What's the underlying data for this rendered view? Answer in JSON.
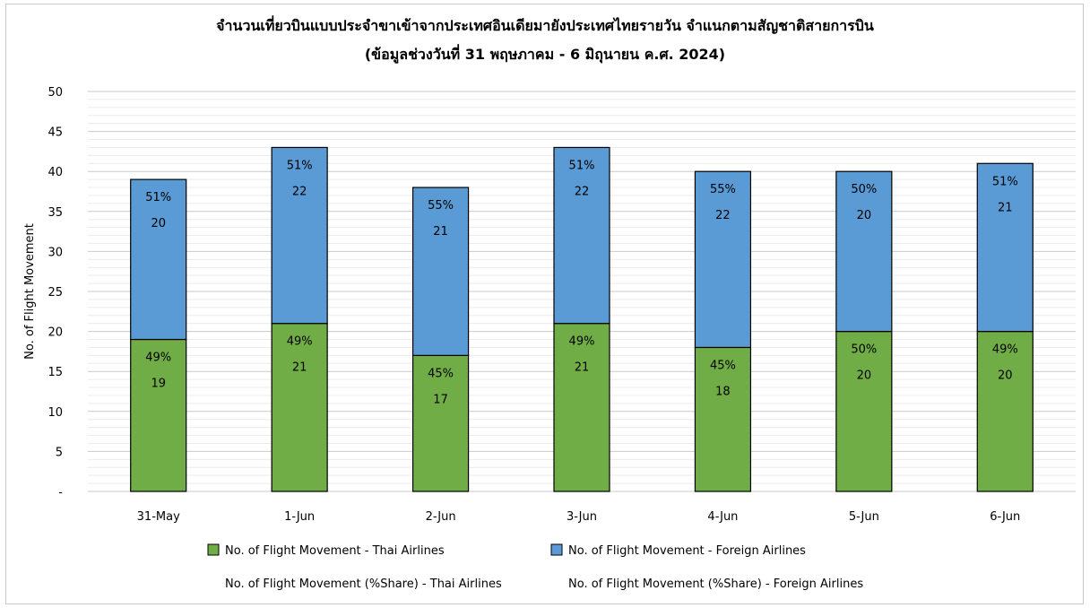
{
  "chart_data": {
    "type": "bar",
    "stacked": true,
    "title": "จำนวนเที่ยวบินแบบประจำขาเข้าจากประเทศอินเดียมายังประเทศไทยรายวัน  จำแนกตามสัญชาติสายการบิน",
    "subtitle": "(ข้อมูลช่วงวันที่ 31 พฤษภาคม - 6 มิถุนายน ค.ศ. 2024)",
    "xlabel": "",
    "ylabel": "No. of Flight Movement",
    "ylim": [
      0,
      50
    ],
    "yticks": [
      "-",
      "5",
      "10",
      "15",
      "20",
      "25",
      "30",
      "35",
      "40",
      "45",
      "50"
    ],
    "grid": true,
    "legend_position": "bottom",
    "categories": [
      "31-May",
      "1-Jun",
      "2-Jun",
      "3-Jun",
      "4-Jun",
      "5-Jun",
      "6-Jun"
    ],
    "series": [
      {
        "name": "No. of Flight Movement - Thai Airlines",
        "color": "#70ad47",
        "values": [
          19,
          21,
          17,
          21,
          18,
          20,
          20
        ],
        "share_labels": [
          "49%",
          "49%",
          "45%",
          "49%",
          "45%",
          "50%",
          "49%"
        ]
      },
      {
        "name": "No. of Flight Movement - Foreign Airlines",
        "color": "#5b9bd5",
        "values": [
          20,
          22,
          21,
          22,
          22,
          20,
          21
        ],
        "share_labels": [
          "51%",
          "51%",
          "55%",
          "51%",
          "55%",
          "50%",
          "51%"
        ]
      }
    ],
    "share_legend": [
      "No. of Flight Movement (%Share) - Thai Airlines",
      "No. of Flight Movement (%Share) - Foreign Airlines"
    ]
  }
}
